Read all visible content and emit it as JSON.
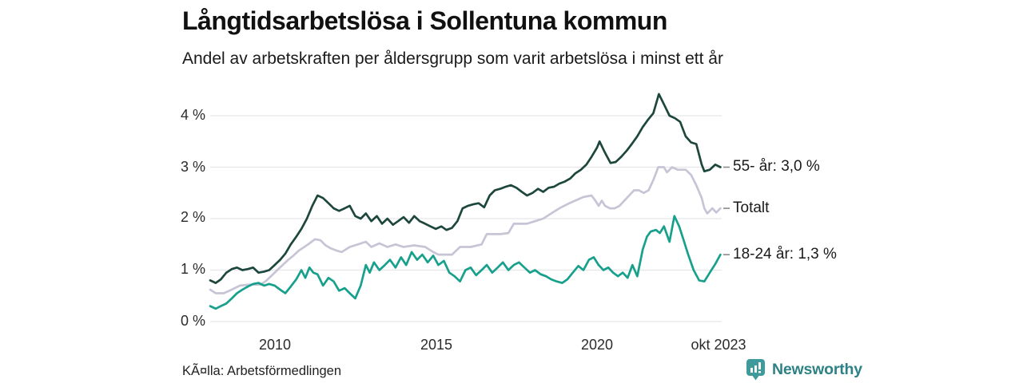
{
  "header": {
    "title": "Långtidsarbetslösa i Sollentuna kommun",
    "subtitle": "Andel av arbetskraften per åldersgrupp som varit arbetslösa i minst ett år"
  },
  "footer": {
    "source": "KÃ¤lla: Arbetsförmedlingen",
    "brand": "Newsworthy",
    "brand_color": "#3f9b9b",
    "brand_text_color": "#2e8185"
  },
  "chart_data": {
    "type": "line",
    "title": "Långtidsarbetslösa i Sollentuna kommun",
    "xlabel": "",
    "ylabel": "",
    "grid": true,
    "gridline_color": "#e6e6ea",
    "leader_dash_color": "#8a8a8a",
    "x_range": [
      2008.0,
      2023.83
    ],
    "ylim": [
      0,
      4.6
    ],
    "y_axis": {
      "ticks": [
        {
          "label": "0 %",
          "value": 0
        },
        {
          "label": "1 %",
          "value": 1
        },
        {
          "label": "2 %",
          "value": 2
        },
        {
          "label": "3 %",
          "value": 3
        },
        {
          "label": "4 %",
          "value": 4
        }
      ]
    },
    "x_axis": {
      "ticks": [
        {
          "label": "2010",
          "value": 2010
        },
        {
          "label": "2015",
          "value": 2015
        },
        {
          "label": "2020",
          "value": 2020
        },
        {
          "label": "okt 2023",
          "value": 2023.75
        }
      ]
    },
    "legend_position": "right-of-line-ends",
    "series": [
      {
        "name": "55- år",
        "label": "55- år: 3,0 %",
        "end_value": "3,0 %",
        "color": "#1d473d",
        "points": [
          [
            2008.0,
            0.8
          ],
          [
            2008.17,
            0.75
          ],
          [
            2008.33,
            0.82
          ],
          [
            2008.5,
            0.95
          ],
          [
            2008.67,
            1.02
          ],
          [
            2008.83,
            1.05
          ],
          [
            2009.0,
            1.0
          ],
          [
            2009.17,
            1.02
          ],
          [
            2009.33,
            1.05
          ],
          [
            2009.5,
            0.95
          ],
          [
            2009.67,
            0.97
          ],
          [
            2009.83,
            1.0
          ],
          [
            2010.0,
            1.1
          ],
          [
            2010.17,
            1.2
          ],
          [
            2010.33,
            1.32
          ],
          [
            2010.5,
            1.5
          ],
          [
            2010.67,
            1.65
          ],
          [
            2010.83,
            1.8
          ],
          [
            2011.0,
            2.0
          ],
          [
            2011.17,
            2.25
          ],
          [
            2011.33,
            2.45
          ],
          [
            2011.5,
            2.4
          ],
          [
            2011.67,
            2.3
          ],
          [
            2011.83,
            2.2
          ],
          [
            2012.0,
            2.15
          ],
          [
            2012.17,
            2.2
          ],
          [
            2012.33,
            2.25
          ],
          [
            2012.5,
            2.05
          ],
          [
            2012.67,
            2.0
          ],
          [
            2012.83,
            2.1
          ],
          [
            2013.0,
            1.95
          ],
          [
            2013.17,
            2.05
          ],
          [
            2013.33,
            1.9
          ],
          [
            2013.5,
            2.0
          ],
          [
            2013.67,
            1.88
          ],
          [
            2013.83,
            1.95
          ],
          [
            2014.0,
            2.03
          ],
          [
            2014.17,
            1.92
          ],
          [
            2014.33,
            2.05
          ],
          [
            2014.5,
            1.95
          ],
          [
            2014.67,
            1.9
          ],
          [
            2014.83,
            1.85
          ],
          [
            2015.0,
            1.8
          ],
          [
            2015.17,
            1.85
          ],
          [
            2015.33,
            1.78
          ],
          [
            2015.5,
            1.82
          ],
          [
            2015.67,
            1.95
          ],
          [
            2015.83,
            2.2
          ],
          [
            2016.0,
            2.25
          ],
          [
            2016.17,
            2.28
          ],
          [
            2016.33,
            2.3
          ],
          [
            2016.5,
            2.22
          ],
          [
            2016.67,
            2.45
          ],
          [
            2016.83,
            2.55
          ],
          [
            2017.0,
            2.58
          ],
          [
            2017.17,
            2.62
          ],
          [
            2017.33,
            2.65
          ],
          [
            2017.5,
            2.6
          ],
          [
            2017.67,
            2.52
          ],
          [
            2017.83,
            2.45
          ],
          [
            2018.0,
            2.5
          ],
          [
            2018.17,
            2.58
          ],
          [
            2018.33,
            2.52
          ],
          [
            2018.5,
            2.6
          ],
          [
            2018.67,
            2.62
          ],
          [
            2018.83,
            2.68
          ],
          [
            2019.0,
            2.72
          ],
          [
            2019.17,
            2.78
          ],
          [
            2019.33,
            2.88
          ],
          [
            2019.5,
            2.95
          ],
          [
            2019.67,
            3.05
          ],
          [
            2019.83,
            3.2
          ],
          [
            2020.0,
            3.38
          ],
          [
            2020.08,
            3.5
          ],
          [
            2020.25,
            3.28
          ],
          [
            2020.42,
            3.08
          ],
          [
            2020.58,
            3.1
          ],
          [
            2020.75,
            3.2
          ],
          [
            2020.92,
            3.32
          ],
          [
            2021.08,
            3.45
          ],
          [
            2021.25,
            3.6
          ],
          [
            2021.42,
            3.78
          ],
          [
            2021.58,
            3.92
          ],
          [
            2021.75,
            4.05
          ],
          [
            2021.92,
            4.42
          ],
          [
            2022.08,
            4.22
          ],
          [
            2022.25,
            4.0
          ],
          [
            2022.42,
            3.95
          ],
          [
            2022.58,
            3.88
          ],
          [
            2022.75,
            3.6
          ],
          [
            2022.92,
            3.48
          ],
          [
            2023.08,
            3.45
          ],
          [
            2023.25,
            3.05
          ],
          [
            2023.33,
            2.92
          ],
          [
            2023.5,
            2.95
          ],
          [
            2023.67,
            3.05
          ],
          [
            2023.83,
            3.0
          ]
        ]
      },
      {
        "name": "Totalt",
        "label": "Totalt",
        "end_value": "",
        "color": "#c7c4d6",
        "points": [
          [
            2008.0,
            0.62
          ],
          [
            2008.17,
            0.55
          ],
          [
            2008.42,
            0.55
          ],
          [
            2008.67,
            0.62
          ],
          [
            2008.92,
            0.7
          ],
          [
            2009.25,
            0.72
          ],
          [
            2009.58,
            0.72
          ],
          [
            2009.75,
            0.8
          ],
          [
            2009.92,
            0.9
          ],
          [
            2010.08,
            1.0
          ],
          [
            2010.25,
            1.1
          ],
          [
            2010.42,
            1.2
          ],
          [
            2010.58,
            1.28
          ],
          [
            2010.75,
            1.38
          ],
          [
            2010.92,
            1.45
          ],
          [
            2011.08,
            1.52
          ],
          [
            2011.25,
            1.6
          ],
          [
            2011.42,
            1.58
          ],
          [
            2011.58,
            1.48
          ],
          [
            2011.75,
            1.42
          ],
          [
            2011.92,
            1.38
          ],
          [
            2012.08,
            1.35
          ],
          [
            2012.33,
            1.45
          ],
          [
            2012.58,
            1.5
          ],
          [
            2012.83,
            1.55
          ],
          [
            2013.0,
            1.45
          ],
          [
            2013.25,
            1.52
          ],
          [
            2013.5,
            1.45
          ],
          [
            2013.75,
            1.5
          ],
          [
            2014.0,
            1.45
          ],
          [
            2014.33,
            1.48
          ],
          [
            2014.67,
            1.45
          ],
          [
            2014.92,
            1.35
          ],
          [
            2015.08,
            1.3
          ],
          [
            2015.5,
            1.3
          ],
          [
            2015.75,
            1.45
          ],
          [
            2016.08,
            1.45
          ],
          [
            2016.42,
            1.5
          ],
          [
            2016.58,
            1.7
          ],
          [
            2017.0,
            1.7
          ],
          [
            2017.25,
            1.72
          ],
          [
            2017.42,
            1.9
          ],
          [
            2017.83,
            1.9
          ],
          [
            2018.08,
            1.95
          ],
          [
            2018.33,
            2.0
          ],
          [
            2018.58,
            2.1
          ],
          [
            2018.83,
            2.2
          ],
          [
            2019.08,
            2.28
          ],
          [
            2019.33,
            2.35
          ],
          [
            2019.58,
            2.42
          ],
          [
            2019.83,
            2.45
          ],
          [
            2019.95,
            2.35
          ],
          [
            2020.05,
            2.25
          ],
          [
            2020.15,
            2.35
          ],
          [
            2020.25,
            2.25
          ],
          [
            2020.4,
            2.2
          ],
          [
            2020.55,
            2.2
          ],
          [
            2020.7,
            2.25
          ],
          [
            2020.85,
            2.35
          ],
          [
            2021.0,
            2.45
          ],
          [
            2021.15,
            2.55
          ],
          [
            2021.3,
            2.55
          ],
          [
            2021.45,
            2.5
          ],
          [
            2021.6,
            2.55
          ],
          [
            2021.75,
            2.75
          ],
          [
            2021.9,
            3.0
          ],
          [
            2022.08,
            3.0
          ],
          [
            2022.17,
            2.9
          ],
          [
            2022.33,
            3.0
          ],
          [
            2022.5,
            2.95
          ],
          [
            2022.75,
            2.95
          ],
          [
            2022.92,
            2.85
          ],
          [
            2023.08,
            2.65
          ],
          [
            2023.25,
            2.4
          ],
          [
            2023.33,
            2.2
          ],
          [
            2023.42,
            2.1
          ],
          [
            2023.58,
            2.2
          ],
          [
            2023.7,
            2.12
          ],
          [
            2023.83,
            2.2
          ]
        ]
      },
      {
        "name": "18-24 år",
        "label": "18-24 år: 1,3 %",
        "end_value": "1,3 %",
        "color": "#17a08c",
        "points": [
          [
            2008.0,
            0.3
          ],
          [
            2008.17,
            0.25
          ],
          [
            2008.33,
            0.3
          ],
          [
            2008.5,
            0.35
          ],
          [
            2008.67,
            0.45
          ],
          [
            2008.83,
            0.55
          ],
          [
            2009.0,
            0.62
          ],
          [
            2009.17,
            0.68
          ],
          [
            2009.33,
            0.73
          ],
          [
            2009.5,
            0.75
          ],
          [
            2009.67,
            0.7
          ],
          [
            2009.83,
            0.73
          ],
          [
            2010.0,
            0.7
          ],
          [
            2010.17,
            0.62
          ],
          [
            2010.33,
            0.55
          ],
          [
            2010.5,
            0.68
          ],
          [
            2010.67,
            0.82
          ],
          [
            2010.83,
            1.0
          ],
          [
            2010.95,
            0.85
          ],
          [
            2011.08,
            1.05
          ],
          [
            2011.2,
            0.95
          ],
          [
            2011.33,
            0.92
          ],
          [
            2011.5,
            0.7
          ],
          [
            2011.67,
            0.85
          ],
          [
            2011.83,
            0.78
          ],
          [
            2012.0,
            0.6
          ],
          [
            2012.17,
            0.65
          ],
          [
            2012.33,
            0.55
          ],
          [
            2012.5,
            0.45
          ],
          [
            2012.67,
            0.7
          ],
          [
            2012.83,
            1.1
          ],
          [
            2012.95,
            0.95
          ],
          [
            2013.08,
            1.15
          ],
          [
            2013.25,
            1.0
          ],
          [
            2013.42,
            1.1
          ],
          [
            2013.58,
            1.2
          ],
          [
            2013.75,
            1.05
          ],
          [
            2013.92,
            1.25
          ],
          [
            2014.08,
            1.1
          ],
          [
            2014.25,
            1.35
          ],
          [
            2014.42,
            1.2
          ],
          [
            2014.58,
            1.3
          ],
          [
            2014.75,
            1.15
          ],
          [
            2014.92,
            1.28
          ],
          [
            2015.08,
            1.1
          ],
          [
            2015.25,
            1.18
          ],
          [
            2015.42,
            0.95
          ],
          [
            2015.58,
            0.88
          ],
          [
            2015.75,
            0.78
          ],
          [
            2015.92,
            1.0
          ],
          [
            2016.08,
            1.05
          ],
          [
            2016.25,
            0.9
          ],
          [
            2016.42,
            1.0
          ],
          [
            2016.58,
            1.1
          ],
          [
            2016.75,
            0.95
          ],
          [
            2016.92,
            1.05
          ],
          [
            2017.08,
            1.15
          ],
          [
            2017.25,
            1.0
          ],
          [
            2017.42,
            1.1
          ],
          [
            2017.58,
            1.15
          ],
          [
            2017.75,
            1.05
          ],
          [
            2017.92,
            0.95
          ],
          [
            2018.08,
            1.0
          ],
          [
            2018.25,
            0.92
          ],
          [
            2018.42,
            0.88
          ],
          [
            2018.58,
            0.82
          ],
          [
            2018.75,
            0.78
          ],
          [
            2018.92,
            0.75
          ],
          [
            2019.08,
            0.82
          ],
          [
            2019.25,
            0.95
          ],
          [
            2019.42,
            1.08
          ],
          [
            2019.58,
            1.0
          ],
          [
            2019.75,
            1.2
          ],
          [
            2019.9,
            1.25
          ],
          [
            2020.05,
            1.1
          ],
          [
            2020.2,
            1.0
          ],
          [
            2020.35,
            1.05
          ],
          [
            2020.5,
            0.95
          ],
          [
            2020.65,
            0.88
          ],
          [
            2020.8,
            0.95
          ],
          [
            2020.95,
            0.85
          ],
          [
            2021.1,
            1.1
          ],
          [
            2021.25,
            0.88
          ],
          [
            2021.42,
            1.4
          ],
          [
            2021.55,
            1.65
          ],
          [
            2021.67,
            1.75
          ],
          [
            2021.83,
            1.78
          ],
          [
            2021.95,
            1.72
          ],
          [
            2022.08,
            1.85
          ],
          [
            2022.25,
            1.55
          ],
          [
            2022.4,
            2.05
          ],
          [
            2022.55,
            1.85
          ],
          [
            2022.67,
            1.62
          ],
          [
            2022.83,
            1.3
          ],
          [
            2023.0,
            1.0
          ],
          [
            2023.17,
            0.8
          ],
          [
            2023.33,
            0.78
          ],
          [
            2023.5,
            0.95
          ],
          [
            2023.67,
            1.12
          ],
          [
            2023.83,
            1.3
          ]
        ]
      }
    ]
  }
}
